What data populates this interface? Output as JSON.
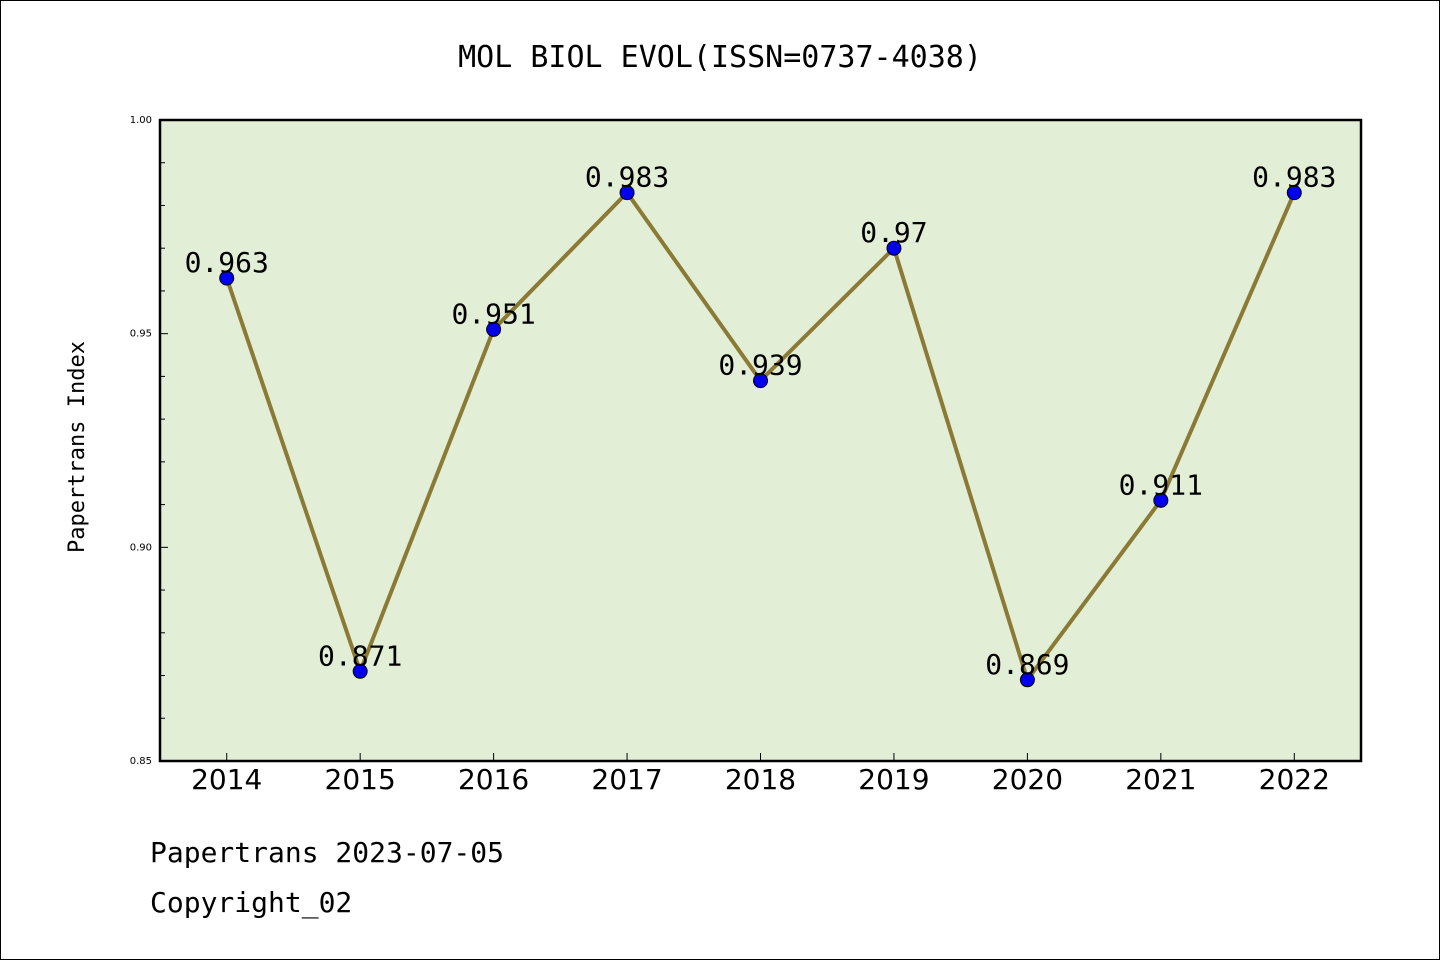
{
  "chart_data": {
    "type": "line",
    "title": "MOL BIOL EVOL(ISSN=0737-4038)",
    "xlabel": "",
    "ylabel": "Papertrans Index",
    "categories": [
      "2014",
      "2015",
      "2016",
      "2017",
      "2018",
      "2019",
      "2020",
      "2021",
      "2022"
    ],
    "values": [
      0.963,
      0.871,
      0.951,
      0.983,
      0.939,
      0.97,
      0.869,
      0.911,
      0.983
    ],
    "data_labels": [
      "0.963",
      "0.871",
      "0.951",
      "0.983",
      "0.939",
      "0.97",
      "0.869",
      "0.911",
      "0.983"
    ],
    "ylim": [
      0.85,
      1.0
    ],
    "yticks": [
      "0.85",
      "0.90",
      "0.95",
      "1.00"
    ],
    "grid": false,
    "legend": "none",
    "colors": {
      "plot_background": "#e2efd6",
      "line": "#8b7a35",
      "marker": "#0000ee"
    }
  },
  "footer": {
    "date_line": "Papertrans 2023-07-05",
    "copyright_line": "Copyright_02"
  }
}
